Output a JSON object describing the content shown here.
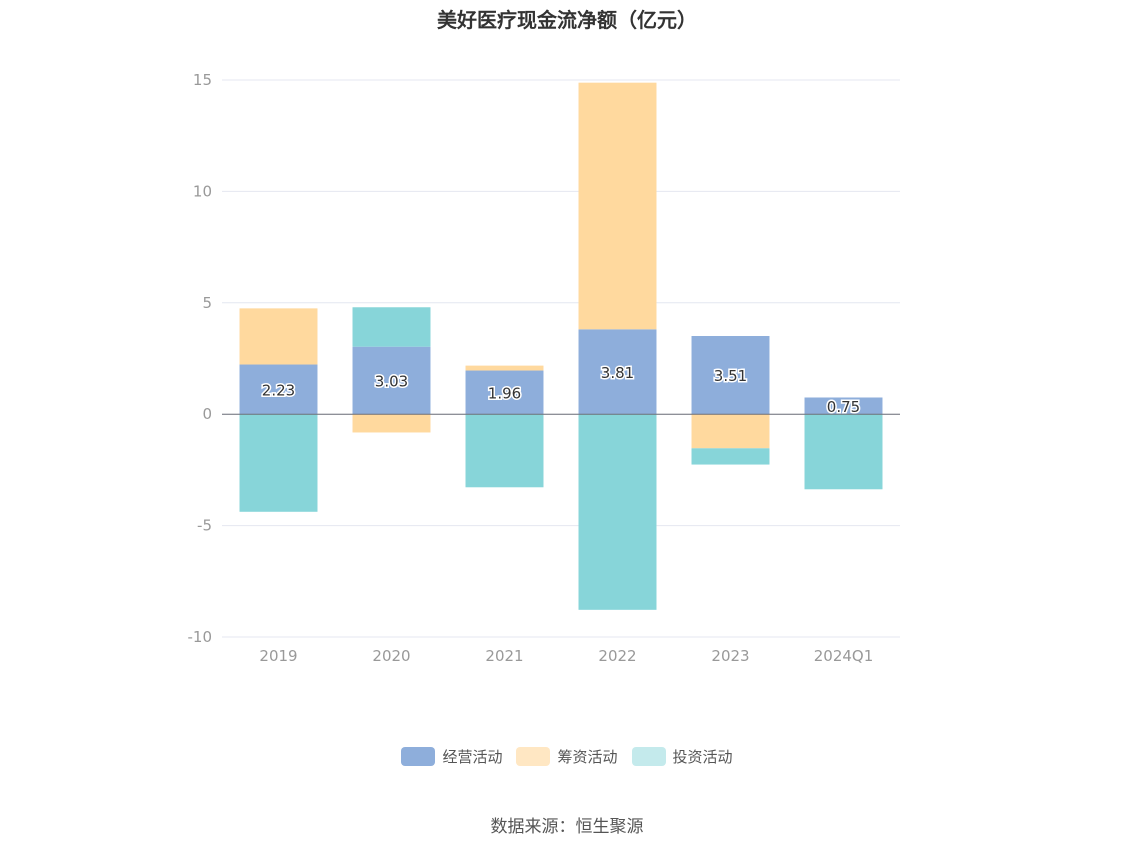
{
  "chart_data": {
    "type": "bar",
    "stacked": true,
    "title": "美好医疗现金流净额（亿元）",
    "categories": [
      "2019",
      "2020",
      "2021",
      "2022",
      "2023",
      "2024Q1"
    ],
    "ylim": [
      -10,
      15
    ],
    "yticks": [
      15,
      10,
      5,
      0,
      -5,
      -10
    ],
    "grid": true,
    "legend_position": "bottom",
    "series": [
      {
        "name": "经营活动",
        "color": "#8eaedb",
        "legend_color": "#8eaedb",
        "values": [
          2.23,
          3.03,
          1.96,
          3.81,
          3.51,
          0.75
        ],
        "labels": [
          "2.23",
          "3.03",
          "1.96",
          "3.81",
          "3.51",
          "0.75"
        ]
      },
      {
        "name": "筹资活动",
        "color": "#ffd99e",
        "legend_color": "#ffe7c3",
        "values": [
          2.52,
          -0.82,
          0.22,
          11.07,
          -1.53,
          0.0
        ]
      },
      {
        "name": "投资活动",
        "color": "#87d5d9",
        "legend_color": "#c4eaec",
        "values": [
          -4.38,
          1.77,
          -3.28,
          -8.78,
          -0.73,
          -3.37
        ]
      }
    ]
  },
  "source": "数据来源：恒生聚源"
}
